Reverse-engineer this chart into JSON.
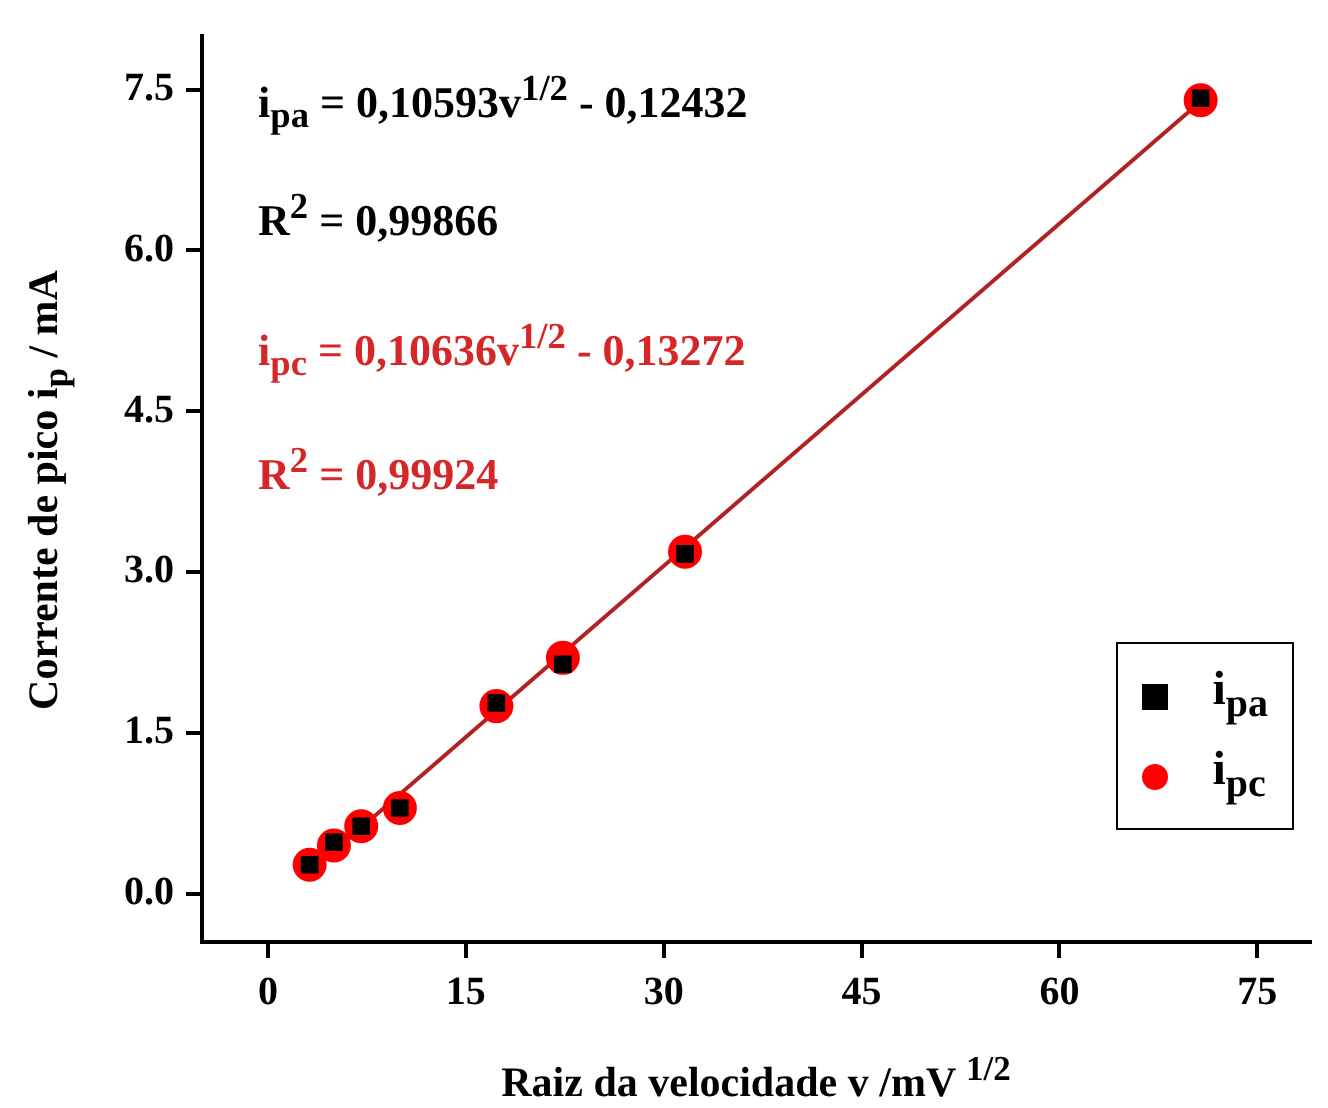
{
  "chart_data": {
    "type": "scatter",
    "xlabel": "Raiz da velocidade v /mV $^{1/2}$",
    "ylabel": "Corrente de pico i$_{p}$ / mA",
    "annotations": [
      "i$_{pa}$ = 0,10593v$^{1/2}$ - 0,12432",
      "R$^{2}$ = 0,99866",
      "i$_{pc}$ = 0,10636v$^{1/2}$ - 0,13272",
      "R$^{2}$ = 0,99924"
    ],
    "x": [
      3.16,
      5,
      7.07,
      10,
      17.32,
      22.36,
      31.62,
      70.71
    ],
    "series": [
      {
        "name": "i$_{pa}$",
        "type": "scatter",
        "marker": "square",
        "color": "#000000",
        "values": [
          0.27,
          0.48,
          0.63,
          0.8,
          1.78,
          2.14,
          3.17,
          7.42
        ]
      },
      {
        "name": "i$_{pc}$",
        "type": "scatter",
        "marker": "circle",
        "color": "#ff0000",
        "values": [
          0.27,
          0.45,
          0.63,
          0.8,
          1.75,
          2.2,
          3.19,
          7.4
        ]
      },
      {
        "type": "line",
        "marker": "none",
        "color": "#b22222",
        "x": [
          3.16,
          70.71
        ],
        "values": [
          0.2,
          7.39
        ]
      }
    ],
    "xlim": [
      -5,
      79
    ],
    "xticks": [
      0,
      15,
      30,
      45,
      60,
      75
    ],
    "ylim": [
      -0.45,
      8
    ],
    "yticks": [
      {
        "value": 0,
        "label": "0.0"
      },
      {
        "value": 1.5,
        "label": "1.5"
      },
      {
        "value": 3,
        "label": "3.0"
      },
      {
        "value": 4.5,
        "label": "4.5"
      },
      {
        "value": 6,
        "label": "6.0"
      },
      {
        "value": 7.5,
        "label": "7.5"
      }
    ],
    "grid": false,
    "legend": "bottom right"
  }
}
